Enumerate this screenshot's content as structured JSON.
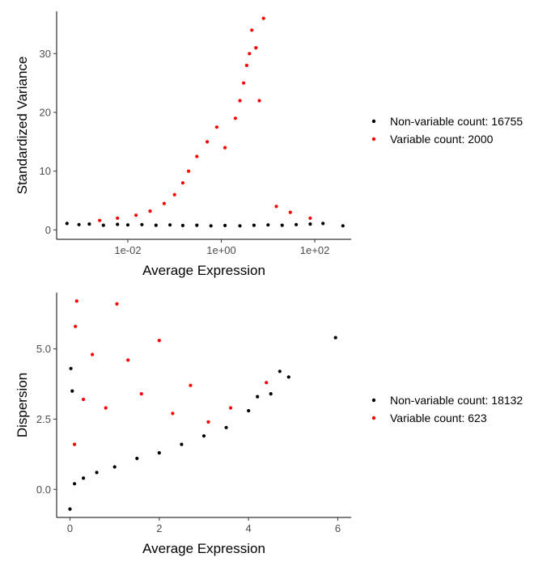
{
  "colors": {
    "non_variable": "#000000",
    "variable": "#ff0000"
  },
  "chart_data": [
    {
      "type": "scatter",
      "xlabel": "Average Expression",
      "ylabel": "Standardized Variance",
      "x_scale": "log10",
      "xlim": [
        0.0003,
        600
      ],
      "ylim": [
        -1.6,
        37.2
      ],
      "x_ticks": [
        {
          "value": 0.01,
          "label": "1e-02"
        },
        {
          "value": 1,
          "label": "1e+00"
        },
        {
          "value": 100,
          "label": "1e+02"
        }
      ],
      "y_ticks": [
        {
          "value": 0,
          "label": "0"
        },
        {
          "value": 10,
          "label": "10"
        },
        {
          "value": 20,
          "label": "20"
        },
        {
          "value": 30,
          "label": "30"
        }
      ],
      "grid": false,
      "legend_position": "right",
      "legend": [
        {
          "label": "Non-variable count: 16755",
          "color": "#000000"
        },
        {
          "label": "Variable count: 2000",
          "color": "#ff0000"
        }
      ],
      "series": [
        {
          "name": "Non-variable count: 16755",
          "color": "#000000",
          "points": [
            [
              0.0005,
              1.1
            ],
            [
              0.0009,
              0.9
            ],
            [
              0.0015,
              1.0
            ],
            [
              0.003,
              0.8
            ],
            [
              0.006,
              0.95
            ],
            [
              0.01,
              0.85
            ],
            [
              0.02,
              0.9
            ],
            [
              0.04,
              0.8
            ],
            [
              0.08,
              0.85
            ],
            [
              0.15,
              0.75
            ],
            [
              0.3,
              0.8
            ],
            [
              0.6,
              0.7
            ],
            [
              1.2,
              0.75
            ],
            [
              2.5,
              0.7
            ],
            [
              5,
              0.8
            ],
            [
              10,
              0.85
            ],
            [
              20,
              0.8
            ],
            [
              40,
              0.9
            ],
            [
              80,
              1.0
            ],
            [
              150,
              1.1
            ],
            [
              400,
              0.7
            ]
          ]
        },
        {
          "name": "Variable count: 2000",
          "color": "#ff0000",
          "points": [
            [
              0.0025,
              1.6
            ],
            [
              0.006,
              2.0
            ],
            [
              0.015,
              2.5
            ],
            [
              0.03,
              3.2
            ],
            [
              0.06,
              4.5
            ],
            [
              0.1,
              6.0
            ],
            [
              0.15,
              8.0
            ],
            [
              0.2,
              10.0
            ],
            [
              0.3,
              12.5
            ],
            [
              0.5,
              15.0
            ],
            [
              0.8,
              17.5
            ],
            [
              1.2,
              14.0
            ],
            [
              2.0,
              19.0
            ],
            [
              2.5,
              22.0
            ],
            [
              3.0,
              25.0
            ],
            [
              3.5,
              28.0
            ],
            [
              4.0,
              30.0
            ],
            [
              4.5,
              34.0
            ],
            [
              5.5,
              31.0
            ],
            [
              8.0,
              36.0
            ],
            [
              6.5,
              22.0
            ],
            [
              15,
              4.0
            ],
            [
              30,
              3.0
            ],
            [
              80,
              2.0
            ]
          ]
        }
      ]
    },
    {
      "type": "scatter",
      "xlabel": "Average Expression",
      "ylabel": "Dispersion",
      "xlim": [
        -0.3,
        6.3
      ],
      "ylim": [
        -1.0,
        7.0
      ],
      "x_ticks": [
        {
          "value": 0,
          "label": "0"
        },
        {
          "value": 2,
          "label": "2"
        },
        {
          "value": 4,
          "label": "4"
        },
        {
          "value": 6,
          "label": "6"
        }
      ],
      "y_ticks": [
        {
          "value": 0,
          "label": "0.0"
        },
        {
          "value": 2.5,
          "label": "2.5"
        },
        {
          "value": 5,
          "label": "5.0"
        }
      ],
      "grid": false,
      "legend_position": "right",
      "legend": [
        {
          "label": "Non-variable count: 18132",
          "color": "#000000"
        },
        {
          "label": "Variable count: 623",
          "color": "#ff0000"
        }
      ],
      "series": [
        {
          "name": "Non-variable count: 18132",
          "color": "#000000",
          "points": [
            [
              0.0,
              -0.7
            ],
            [
              0.02,
              4.3
            ],
            [
              0.05,
              3.5
            ],
            [
              0.1,
              0.2
            ],
            [
              0.3,
              0.4
            ],
            [
              0.6,
              0.6
            ],
            [
              1.0,
              0.8
            ],
            [
              1.5,
              1.1
            ],
            [
              2.0,
              1.3
            ],
            [
              2.5,
              1.6
            ],
            [
              3.0,
              1.9
            ],
            [
              3.5,
              2.2
            ],
            [
              4.0,
              2.8
            ],
            [
              4.2,
              3.3
            ],
            [
              4.5,
              3.4
            ],
            [
              4.7,
              4.2
            ],
            [
              4.9,
              4.0
            ],
            [
              5.95,
              5.4
            ]
          ]
        },
        {
          "name": "Variable count: 623",
          "color": "#ff0000",
          "points": [
            [
              0.1,
              1.6
            ],
            [
              0.12,
              5.8
            ],
            [
              0.15,
              6.7
            ],
            [
              0.3,
              3.2
            ],
            [
              0.5,
              4.8
            ],
            [
              0.8,
              2.9
            ],
            [
              1.05,
              6.6
            ],
            [
              1.3,
              4.6
            ],
            [
              1.6,
              3.4
            ],
            [
              2.0,
              5.3
            ],
            [
              2.3,
              2.7
            ],
            [
              2.7,
              3.7
            ],
            [
              3.1,
              2.4
            ],
            [
              3.6,
              2.9
            ],
            [
              4.4,
              3.8
            ]
          ]
        }
      ]
    }
  ]
}
